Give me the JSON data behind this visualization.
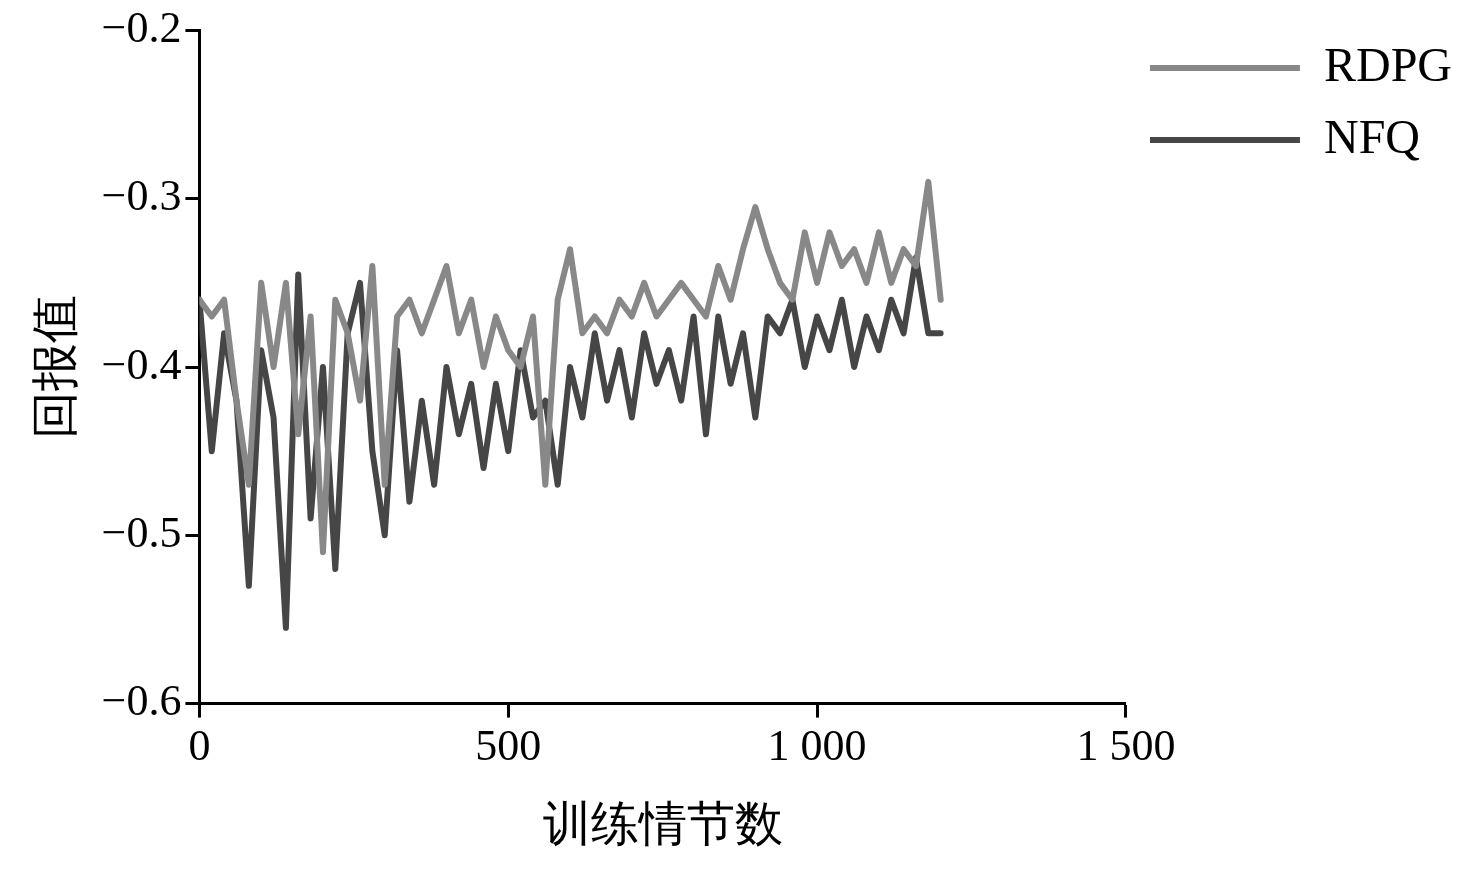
{
  "chart_data": {
    "type": "line",
    "xlabel": "训练情节数",
    "ylabel": "回报值",
    "x": [
      0,
      20,
      40,
      60,
      80,
      100,
      120,
      140,
      160,
      180,
      200,
      220,
      240,
      260,
      280,
      300,
      320,
      340,
      360,
      380,
      400,
      420,
      440,
      460,
      480,
      500,
      520,
      540,
      560,
      580,
      600,
      620,
      640,
      660,
      680,
      700,
      720,
      740,
      760,
      780,
      800,
      820,
      840,
      860,
      880,
      900,
      920,
      940,
      960,
      980,
      1000,
      1020,
      1040,
      1060,
      1080,
      1100,
      1120,
      1140,
      1160,
      1180,
      1200
    ],
    "series": [
      {
        "name": "RDPG",
        "color": "#888888",
        "values": [
          -0.36,
          -0.37,
          -0.36,
          -0.42,
          -0.47,
          -0.35,
          -0.4,
          -0.35,
          -0.44,
          -0.37,
          -0.51,
          -0.36,
          -0.38,
          -0.42,
          -0.34,
          -0.47,
          -0.37,
          -0.36,
          -0.38,
          -0.36,
          -0.34,
          -0.38,
          -0.36,
          -0.4,
          -0.37,
          -0.39,
          -0.4,
          -0.37,
          -0.47,
          -0.36,
          -0.33,
          -0.38,
          -0.37,
          -0.38,
          -0.36,
          -0.37,
          -0.35,
          -0.37,
          -0.36,
          -0.35,
          -0.36,
          -0.37,
          -0.34,
          -0.36,
          -0.33,
          -0.305,
          -0.33,
          -0.35,
          -0.36,
          -0.32,
          -0.35,
          -0.32,
          -0.34,
          -0.33,
          -0.35,
          -0.32,
          -0.35,
          -0.33,
          -0.34,
          -0.29,
          -0.36
        ]
      },
      {
        "name": "NFQ",
        "color": "#464646",
        "values": [
          -0.36,
          -0.45,
          -0.38,
          -0.42,
          -0.53,
          -0.39,
          -0.43,
          -0.555,
          -0.345,
          -0.49,
          -0.4,
          -0.52,
          -0.38,
          -0.35,
          -0.45,
          -0.5,
          -0.39,
          -0.48,
          -0.42,
          -0.47,
          -0.4,
          -0.44,
          -0.41,
          -0.46,
          -0.41,
          -0.45,
          -0.39,
          -0.43,
          -0.42,
          -0.47,
          -0.4,
          -0.43,
          -0.38,
          -0.42,
          -0.39,
          -0.43,
          -0.38,
          -0.41,
          -0.39,
          -0.42,
          -0.37,
          -0.44,
          -0.37,
          -0.41,
          -0.38,
          -0.43,
          -0.37,
          -0.38,
          -0.36,
          -0.4,
          -0.37,
          -0.39,
          -0.36,
          -0.4,
          -0.37,
          -0.39,
          -0.36,
          -0.38,
          -0.335,
          -0.38,
          -0.38
        ]
      }
    ],
    "xlim": [
      0,
      1500
    ],
    "xticks": [
      0,
      500,
      {
        "value": 1000,
        "label": "1 000"
      },
      {
        "value": 1500,
        "label": "1 500"
      }
    ],
    "ylim": [
      -0.6,
      -0.2
    ],
    "yticks": [
      {
        "value": -0.6,
        "label": "−0.6"
      },
      {
        "value": -0.5,
        "label": "−0.5"
      },
      {
        "value": -0.4,
        "label": "−0.4"
      },
      {
        "value": -0.3,
        "label": "−0.3"
      },
      {
        "value": -0.2,
        "label": "−0.2"
      }
    ],
    "legend": "top right",
    "grid": false,
    "marker": "none",
    "line_style": "solid"
  }
}
